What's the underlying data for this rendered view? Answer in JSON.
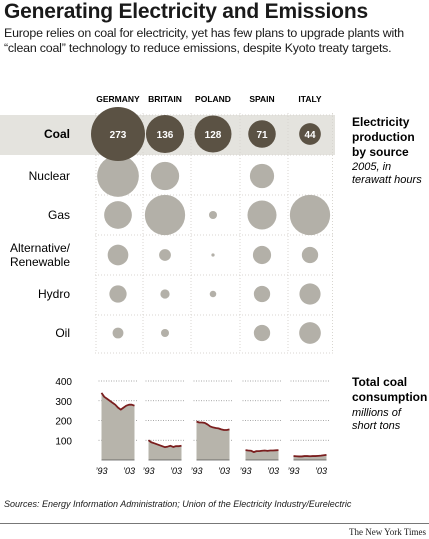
{
  "header": {
    "title": "Generating Electricity and Emissions",
    "subtitle": "Europe relies on coal for electricity, yet has few plans to upgrade plants with “clean coal” technology to reduce emissions, despite Kyoto treaty targets."
  },
  "colors": {
    "coal_bubble": "#5b5244",
    "other_bubble": "#b3b0a8",
    "coal_row_bg": "#e4e3de",
    "area_fill": "#b7b4ab",
    "trend_line": "#7a1e1e",
    "grid": "#8c8c8c"
  },
  "chart_data": [
    {
      "type": "scatter",
      "subtype": "bubble-matrix",
      "title": "Electricity production by source",
      "title_lines": [
        "Electricity",
        "production",
        "by source"
      ],
      "subtitle": "2005, in terawatt hours",
      "subtitle_lines": [
        "2005, in",
        "terawatt hours"
      ],
      "columns": [
        "GERMANY",
        "BRITAIN",
        "POLAND",
        "SPAIN",
        "ITALY"
      ],
      "rows": [
        {
          "label": "Coal",
          "label_lines": [
            "Coal"
          ],
          "values": [
            273,
            136,
            128,
            71,
            44
          ],
          "highlight": true,
          "labeled": true
        },
        {
          "label": "Nuclear",
          "label_lines": [
            "Nuclear"
          ],
          "values": [
            163,
            75,
            0,
            55,
            0
          ],
          "highlight": false,
          "labeled": false
        },
        {
          "label": "Gas",
          "label_lines": [
            "Gas"
          ],
          "values": [
            72,
            152,
            6,
            79,
            152
          ],
          "highlight": false,
          "labeled": false
        },
        {
          "label": "Alternative/Renewable",
          "label_lines": [
            "Alternative/",
            "Renewable"
          ],
          "values": [
            40,
            13,
            1,
            31,
            25
          ],
          "highlight": false,
          "labeled": false
        },
        {
          "label": "Hydro",
          "label_lines": [
            "Hydro"
          ],
          "values": [
            28,
            8,
            4,
            25,
            42
          ],
          "highlight": false,
          "labeled": false
        },
        {
          "label": "Oil",
          "label_lines": [
            "Oil"
          ],
          "values": [
            11,
            6,
            0,
            25,
            44
          ],
          "highlight": false,
          "labeled": false
        }
      ]
    },
    {
      "type": "area",
      "title": "Total coal consumption",
      "title_lines": [
        "Total coal",
        "consumption"
      ],
      "subtitle": "millions of short tons",
      "subtitle_lines": [
        "millions of",
        "short tons"
      ],
      "x_tick_labels": [
        "’93",
        "’03"
      ],
      "y_ticks": [
        100,
        200,
        300,
        400
      ],
      "ylim": [
        0,
        400
      ],
      "x": [
        1993,
        1994,
        1995,
        1996,
        1997,
        1998,
        1999,
        2000,
        2001,
        2002,
        2003,
        2004,
        2005
      ],
      "series": [
        {
          "name": "GERMANY",
          "values": [
            340,
            320,
            310,
            300,
            290,
            280,
            265,
            255,
            265,
            275,
            280,
            280,
            275
          ]
        },
        {
          "name": "BRITAIN",
          "values": [
            100,
            90,
            85,
            80,
            75,
            70,
            65,
            68,
            72,
            66,
            70,
            70,
            72
          ]
        },
        {
          "name": "POLAND",
          "values": [
            195,
            190,
            190,
            188,
            180,
            170,
            165,
            162,
            160,
            155,
            152,
            152,
            155
          ]
        },
        {
          "name": "SPAIN",
          "values": [
            50,
            48,
            47,
            40,
            45,
            45,
            47,
            48,
            46,
            48,
            48,
            49,
            50
          ]
        },
        {
          "name": "ITALY",
          "values": [
            20,
            19,
            18,
            18,
            20,
            20,
            19,
            20,
            20,
            21,
            22,
            24,
            26
          ]
        }
      ]
    }
  ],
  "footer": {
    "sources": "Sources: Energy Information Administration; Union of the Electricity Industry/Eurelectric",
    "credit": "The New York Times"
  }
}
